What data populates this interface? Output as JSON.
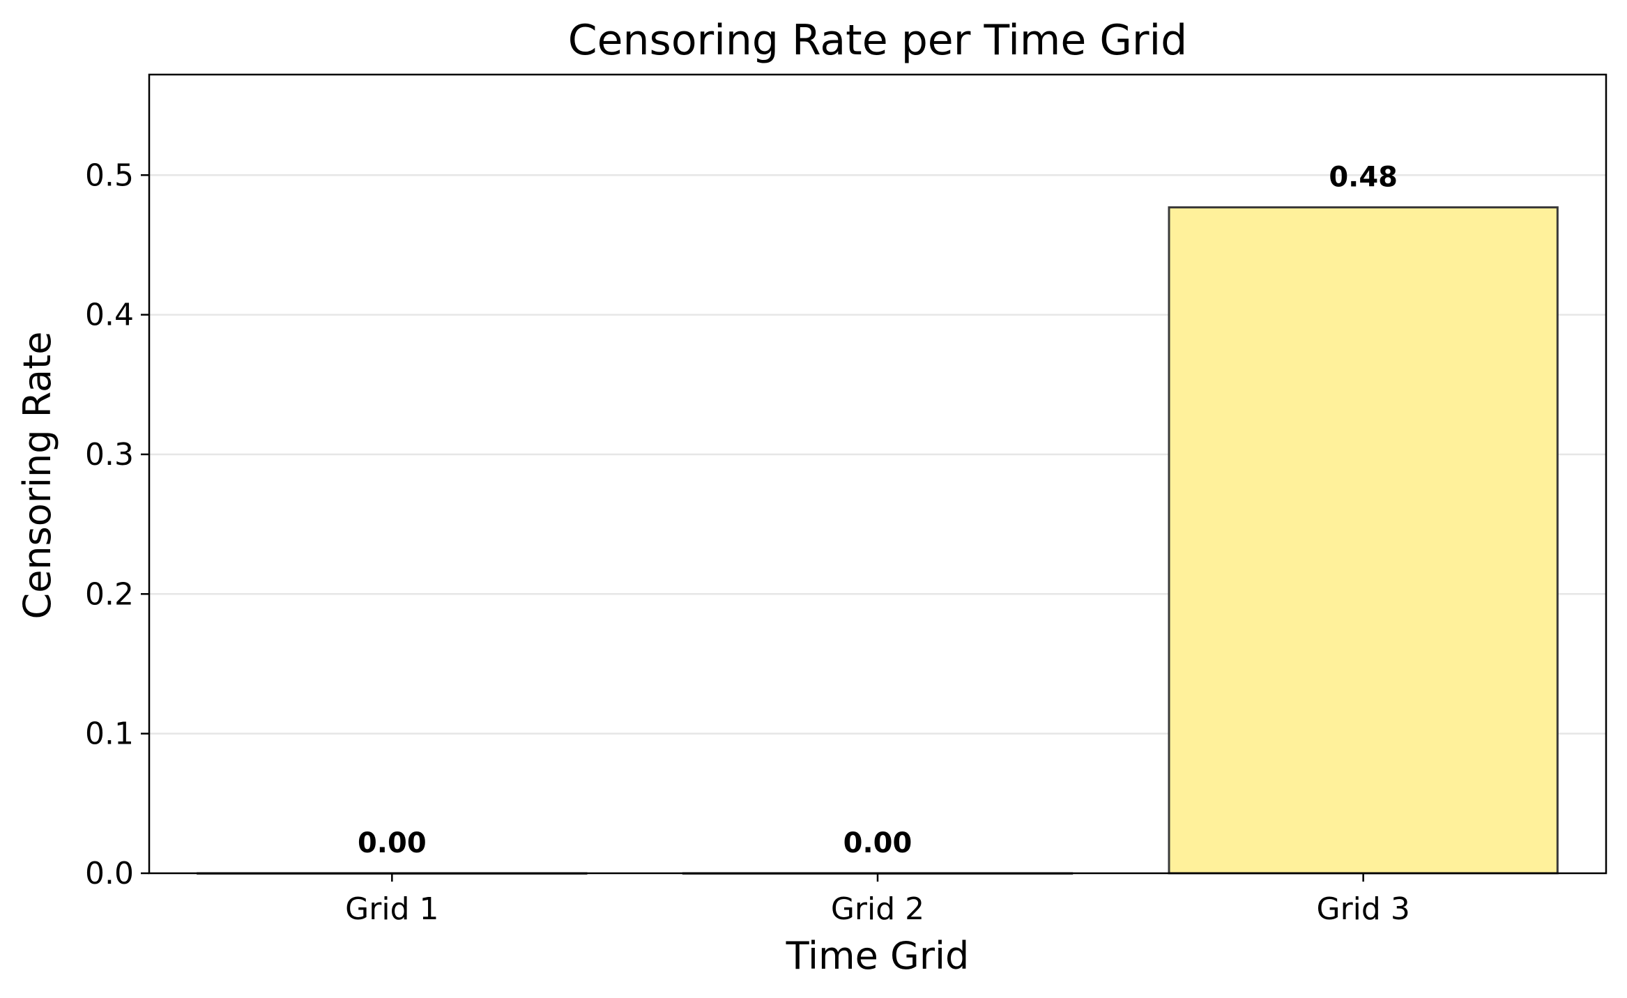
{
  "chart_data": {
    "type": "bar",
    "title": "Censoring Rate per Time Grid",
    "xlabel": "Time Grid",
    "ylabel": "Censoring Rate",
    "categories": [
      "Grid 1",
      "Grid 2",
      "Grid 3"
    ],
    "values": [
      0.0,
      0.0,
      0.4769
    ],
    "data_labels": [
      "0.00",
      "0.00",
      "0.48"
    ],
    "ylim": [
      0,
      0.572
    ],
    "yticks": [
      0.0,
      0.1,
      0.2,
      0.3,
      0.4,
      0.5
    ],
    "ytick_labels": [
      "0.0",
      "0.1",
      "0.2",
      "0.3",
      "0.4",
      "0.5"
    ],
    "grid": "y-axis, light gray",
    "legend": "none",
    "colors": {
      "bar_fill": "#FFF19B",
      "bar_edge": "#3a3a3a",
      "grid": "#e6e6e6",
      "axes": "#000000"
    }
  }
}
